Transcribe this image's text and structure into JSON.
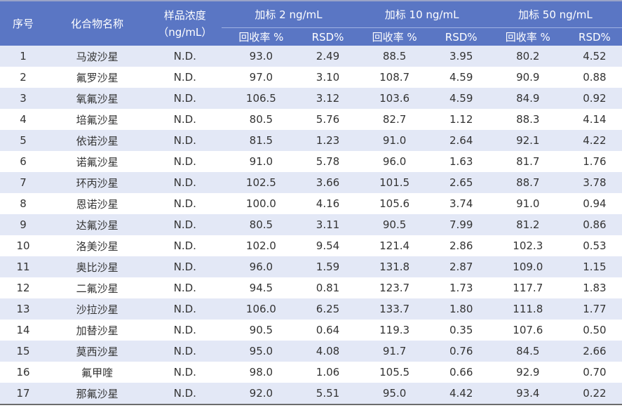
{
  "headers": {
    "index": "序号",
    "name": "化合物名称",
    "concentration_line1": "样品浓度",
    "concentration_line2": "（ng/mL）",
    "groups": [
      "加标 2 ng/mL",
      "加标 10 ng/mL",
      "加标 50 ng/mL"
    ],
    "recovery": "回收率 %",
    "rsd": "RSD%"
  },
  "rows": [
    {
      "idx": "1",
      "name": "马波沙星",
      "conc": "N.D.",
      "r2": "93.0",
      "s2": "2.49",
      "r10": "88.5",
      "s10": "3.95",
      "r50": "80.2",
      "s50": "4.52"
    },
    {
      "idx": "2",
      "name": "氟罗沙星",
      "conc": "N.D.",
      "r2": "97.0",
      "s2": "3.10",
      "r10": "108.7",
      "s10": "4.59",
      "r50": "90.9",
      "s50": "0.88"
    },
    {
      "idx": "3",
      "name": "氧氟沙星",
      "conc": "N.D.",
      "r2": "106.5",
      "s2": "3.12",
      "r10": "103.6",
      "s10": "4.59",
      "r50": "84.9",
      "s50": "0.92"
    },
    {
      "idx": "4",
      "name": "培氟沙星",
      "conc": "N.D.",
      "r2": "80.5",
      "s2": "5.76",
      "r10": "82.7",
      "s10": "1.12",
      "r50": "88.3",
      "s50": "4.14"
    },
    {
      "idx": "5",
      "name": "依诺沙星",
      "conc": "N.D.",
      "r2": "81.5",
      "s2": "1.23",
      "r10": "91.0",
      "s10": "2.64",
      "r50": "92.1",
      "s50": "4.22"
    },
    {
      "idx": "6",
      "name": "诺氟沙星",
      "conc": "N.D.",
      "r2": "91.0",
      "s2": "5.78",
      "r10": "96.0",
      "s10": "1.63",
      "r50": "81.7",
      "s50": "1.76"
    },
    {
      "idx": "7",
      "name": "环丙沙星",
      "conc": "N.D.",
      "r2": "102.5",
      "s2": "3.66",
      "r10": "101.5",
      "s10": "2.65",
      "r50": "88.7",
      "s50": "3.78"
    },
    {
      "idx": "8",
      "name": "恩诺沙星",
      "conc": "N.D.",
      "r2": "100.0",
      "s2": "4.16",
      "r10": "105.6",
      "s10": "3.74",
      "r50": "91.0",
      "s50": "0.94"
    },
    {
      "idx": "9",
      "name": "达氟沙星",
      "conc": "N.D.",
      "r2": "80.5",
      "s2": "3.11",
      "r10": "90.5",
      "s10": "7.99",
      "r50": "81.2",
      "s50": "0.86"
    },
    {
      "idx": "10",
      "name": "洛美沙星",
      "conc": "N.D.",
      "r2": "102.0",
      "s2": "9.54",
      "r10": "121.4",
      "s10": "2.86",
      "r50": "102.3",
      "s50": "0.53"
    },
    {
      "idx": "11",
      "name": "奥比沙星",
      "conc": "N.D.",
      "r2": "96.0",
      "s2": "1.59",
      "r10": "131.8",
      "s10": "2.87",
      "r50": "109.0",
      "s50": "1.15"
    },
    {
      "idx": "12",
      "name": "二氟沙星",
      "conc": "N.D.",
      "r2": "94.5",
      "s2": "0.81",
      "r10": "123.7",
      "s10": "1.73",
      "r50": "117.7",
      "s50": "1.83"
    },
    {
      "idx": "13",
      "name": "沙拉沙星",
      "conc": "N.D.",
      "r2": "106.0",
      "s2": "6.25",
      "r10": "133.7",
      "s10": "1.80",
      "r50": "111.8",
      "s50": "1.77"
    },
    {
      "idx": "14",
      "name": "加替沙星",
      "conc": "N.D.",
      "r2": "90.5",
      "s2": "0.64",
      "r10": "119.3",
      "s10": "0.35",
      "r50": "107.6",
      "s50": "0.50"
    },
    {
      "idx": "15",
      "name": "莫西沙星",
      "conc": "N.D.",
      "r2": "95.0",
      "s2": "4.08",
      "r10": "91.7",
      "s10": "0.76",
      "r50": "84.5",
      "s50": "2.66"
    },
    {
      "idx": "16",
      "name": "氟甲喹",
      "conc": "N.D.",
      "r2": "98.0",
      "s2": "1.06",
      "r10": "105.5",
      "s10": "0.66",
      "r50": "92.9",
      "s50": "0.70"
    },
    {
      "idx": "17",
      "name": "那氟沙星",
      "conc": "N.D.",
      "r2": "92.0",
      "s2": "5.51",
      "r10": "95.0",
      "s10": "4.42",
      "r50": "93.4",
      "s50": "0.22"
    }
  ],
  "colors": {
    "header_bg": "#5a76c4",
    "stripe_bg": "#e3e8f6",
    "text": "#333333"
  }
}
